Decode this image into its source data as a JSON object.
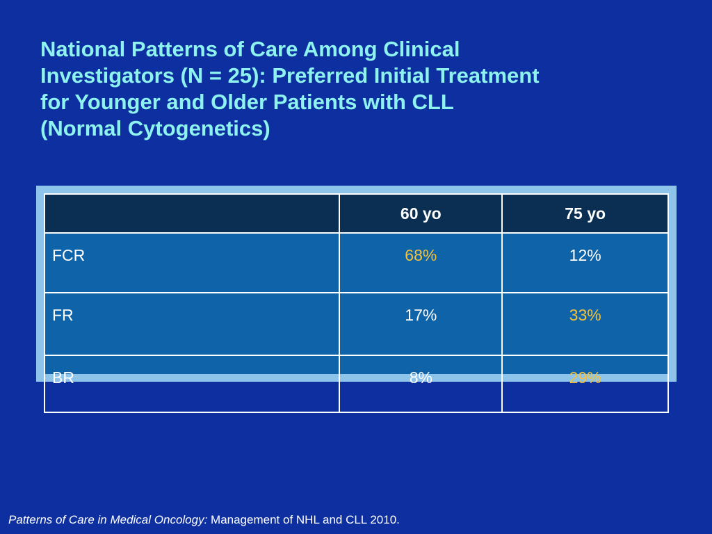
{
  "title_lines": [
    "National Patterns of Care Among Clinical",
    "Investigators (N = 25): Preferred Initial Treatment",
    "for Younger and Older Patients with CLL",
    "(Normal Cytogenetics)"
  ],
  "table": {
    "headers": [
      "",
      "60 yo",
      "75 yo"
    ],
    "rows": [
      {
        "label": "FCR",
        "col1": "68%",
        "col2": "12%"
      },
      {
        "label": "FR",
        "col1": "17%",
        "col2": "33%"
      },
      {
        "label": "BR",
        "col1": "8%",
        "col2": "29%"
      }
    ],
    "highlight_color": "#f5c23a"
  },
  "citation": {
    "italic": "Patterns of Care in Medical Oncology:",
    "normal": " Management of NHL and CLL 2010."
  },
  "colors": {
    "background": "#0d2fa0",
    "title": "#8ef2ee",
    "header_bg": "#0b2f52",
    "cell_bg": "#0f63a8",
    "frame": "#8ec4ea"
  }
}
